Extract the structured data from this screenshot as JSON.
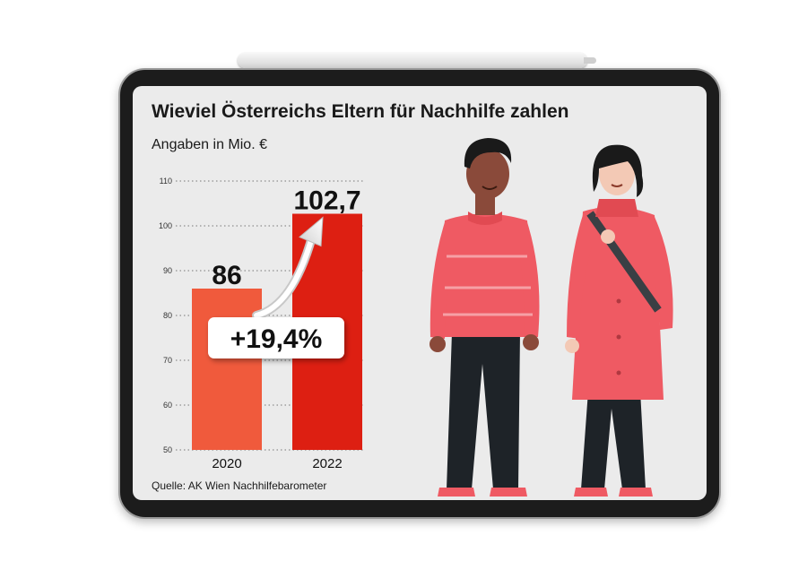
{
  "chart_data": {
    "type": "bar",
    "title": "Wieviel Österreichs Eltern für Nachhilfe zahlen",
    "subtitle": "Angaben in Mio. €",
    "categories": [
      "2020",
      "2022"
    ],
    "values": [
      86,
      102.7
    ],
    "value_labels": [
      "86",
      "102,7"
    ],
    "bar_colors": [
      "#f05a3c",
      "#dd1f12"
    ],
    "ylim": [
      50,
      110
    ],
    "yticks": [
      "50",
      "60",
      "70",
      "80",
      "90",
      "100",
      "110"
    ],
    "change_label": "+19,4%",
    "grid": "dotted",
    "source": "Quelle: AK Wien Nachhilfebarometer"
  },
  "illustration": {
    "description_icon": "two-people-walking-illustration",
    "accent_color": "#ef5a63",
    "pants_color": "#1e2328"
  }
}
